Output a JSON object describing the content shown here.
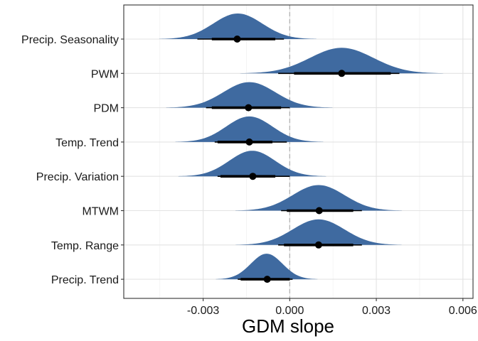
{
  "chart_data": {
    "type": "halfeye",
    "title": "",
    "xlabel": "GDM slope",
    "ylabel": "",
    "xlim": [
      -0.00575,
      0.00635
    ],
    "x_ticks": [
      -0.003,
      0.0,
      0.003,
      0.006
    ],
    "x_tick_labels": [
      "-0.003",
      "0.000",
      "0.003",
      "0.006"
    ],
    "reference_line": 0.0,
    "grid": true,
    "fill_color": "#3f6aa0",
    "interval_color": "#000000",
    "categories": [
      "Precip. Seasonality",
      "PWM",
      "PDM",
      "Temp. Trend",
      "Precip. Variation",
      "MTWM",
      "Temp. Range",
      "Precip. Trend"
    ],
    "series": [
      {
        "label": "Precip. Seasonality",
        "mean": -0.0018,
        "sd": 0.00085,
        "median": -0.00182,
        "ci66": [
          -0.0027,
          -0.0005
        ],
        "ci95": [
          -0.0032,
          -0.0002
        ]
      },
      {
        "label": "PWM",
        "mean": 0.0018,
        "sd": 0.0011,
        "median": 0.0018,
        "ci66": [
          0.00015,
          0.0035
        ],
        "ci95": [
          -0.0004,
          0.0038
        ]
      },
      {
        "label": "PDM",
        "mean": -0.0014,
        "sd": 0.0009,
        "median": -0.00143,
        "ci66": [
          -0.0027,
          -0.0003
        ],
        "ci95": [
          -0.0029,
          0.0
        ]
      },
      {
        "label": "Temp. Trend",
        "mean": -0.0014,
        "sd": 0.0008,
        "median": -0.0014,
        "ci66": [
          -0.0025,
          -0.0006
        ],
        "ci95": [
          -0.0026,
          -0.0001
        ]
      },
      {
        "label": "Precip. Variation",
        "mean": -0.0013,
        "sd": 0.0008,
        "median": -0.00128,
        "ci66": [
          -0.0024,
          -0.0005
        ],
        "ci95": [
          -0.0025,
          0.0
        ]
      },
      {
        "label": "MTWM",
        "mean": 0.001,
        "sd": 0.0009,
        "median": 0.00102,
        "ci66": [
          -0.0001,
          0.0022
        ],
        "ci95": [
          -0.0003,
          0.0025
        ]
      },
      {
        "label": "Temp. Range",
        "mean": 0.001,
        "sd": 0.0009,
        "median": 0.001,
        "ci66": [
          -0.0002,
          0.0022
        ],
        "ci95": [
          -0.0004,
          0.0025
        ]
      },
      {
        "label": "Precip. Trend",
        "mean": -0.0008,
        "sd": 0.00055,
        "median": -0.00078,
        "ci66": [
          -0.0017,
          0.0
        ],
        "ci95": [
          -0.0018,
          0.0001
        ]
      }
    ]
  }
}
